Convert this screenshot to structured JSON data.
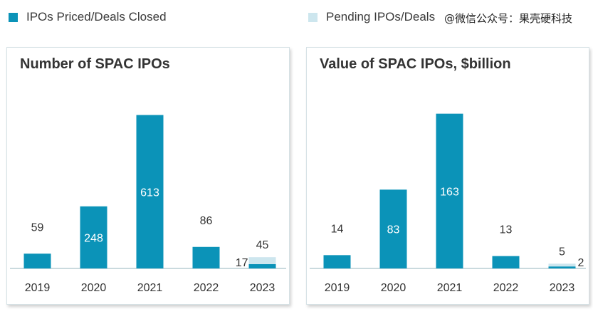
{
  "legend": {
    "priced": "IPOs Priced/Deals Closed",
    "pending": "Pending IPOs/Deals"
  },
  "watermark": "@微信公众号：果壳硬科技",
  "colors": {
    "priced": "#0b93b8",
    "pending": "#cde6ee",
    "axis": "#b8cdd3"
  },
  "chart_data": [
    {
      "type": "bar",
      "title": "Number of SPAC IPOs",
      "categories": [
        "2019",
        "2020",
        "2021",
        "2022",
        "2023"
      ],
      "series": [
        {
          "name": "IPOs Priced/Deals Closed",
          "values": [
            59,
            248,
            613,
            86,
            17
          ]
        },
        {
          "name": "Pending IPOs/Deals",
          "values": [
            0,
            0,
            0,
            0,
            45
          ]
        }
      ],
      "ylim": [
        0,
        660
      ]
    },
    {
      "type": "bar",
      "title": "Value of SPAC IPOs, $billion",
      "categories": [
        "2019",
        "2020",
        "2021",
        "2022",
        "2023"
      ],
      "series": [
        {
          "name": "IPOs Priced/Deals Closed",
          "values": [
            14,
            83,
            163,
            13,
            2
          ]
        },
        {
          "name": "Pending IPOs/Deals",
          "values": [
            0,
            0,
            0,
            0,
            5
          ]
        }
      ],
      "ylim": [
        0,
        174
      ]
    }
  ]
}
